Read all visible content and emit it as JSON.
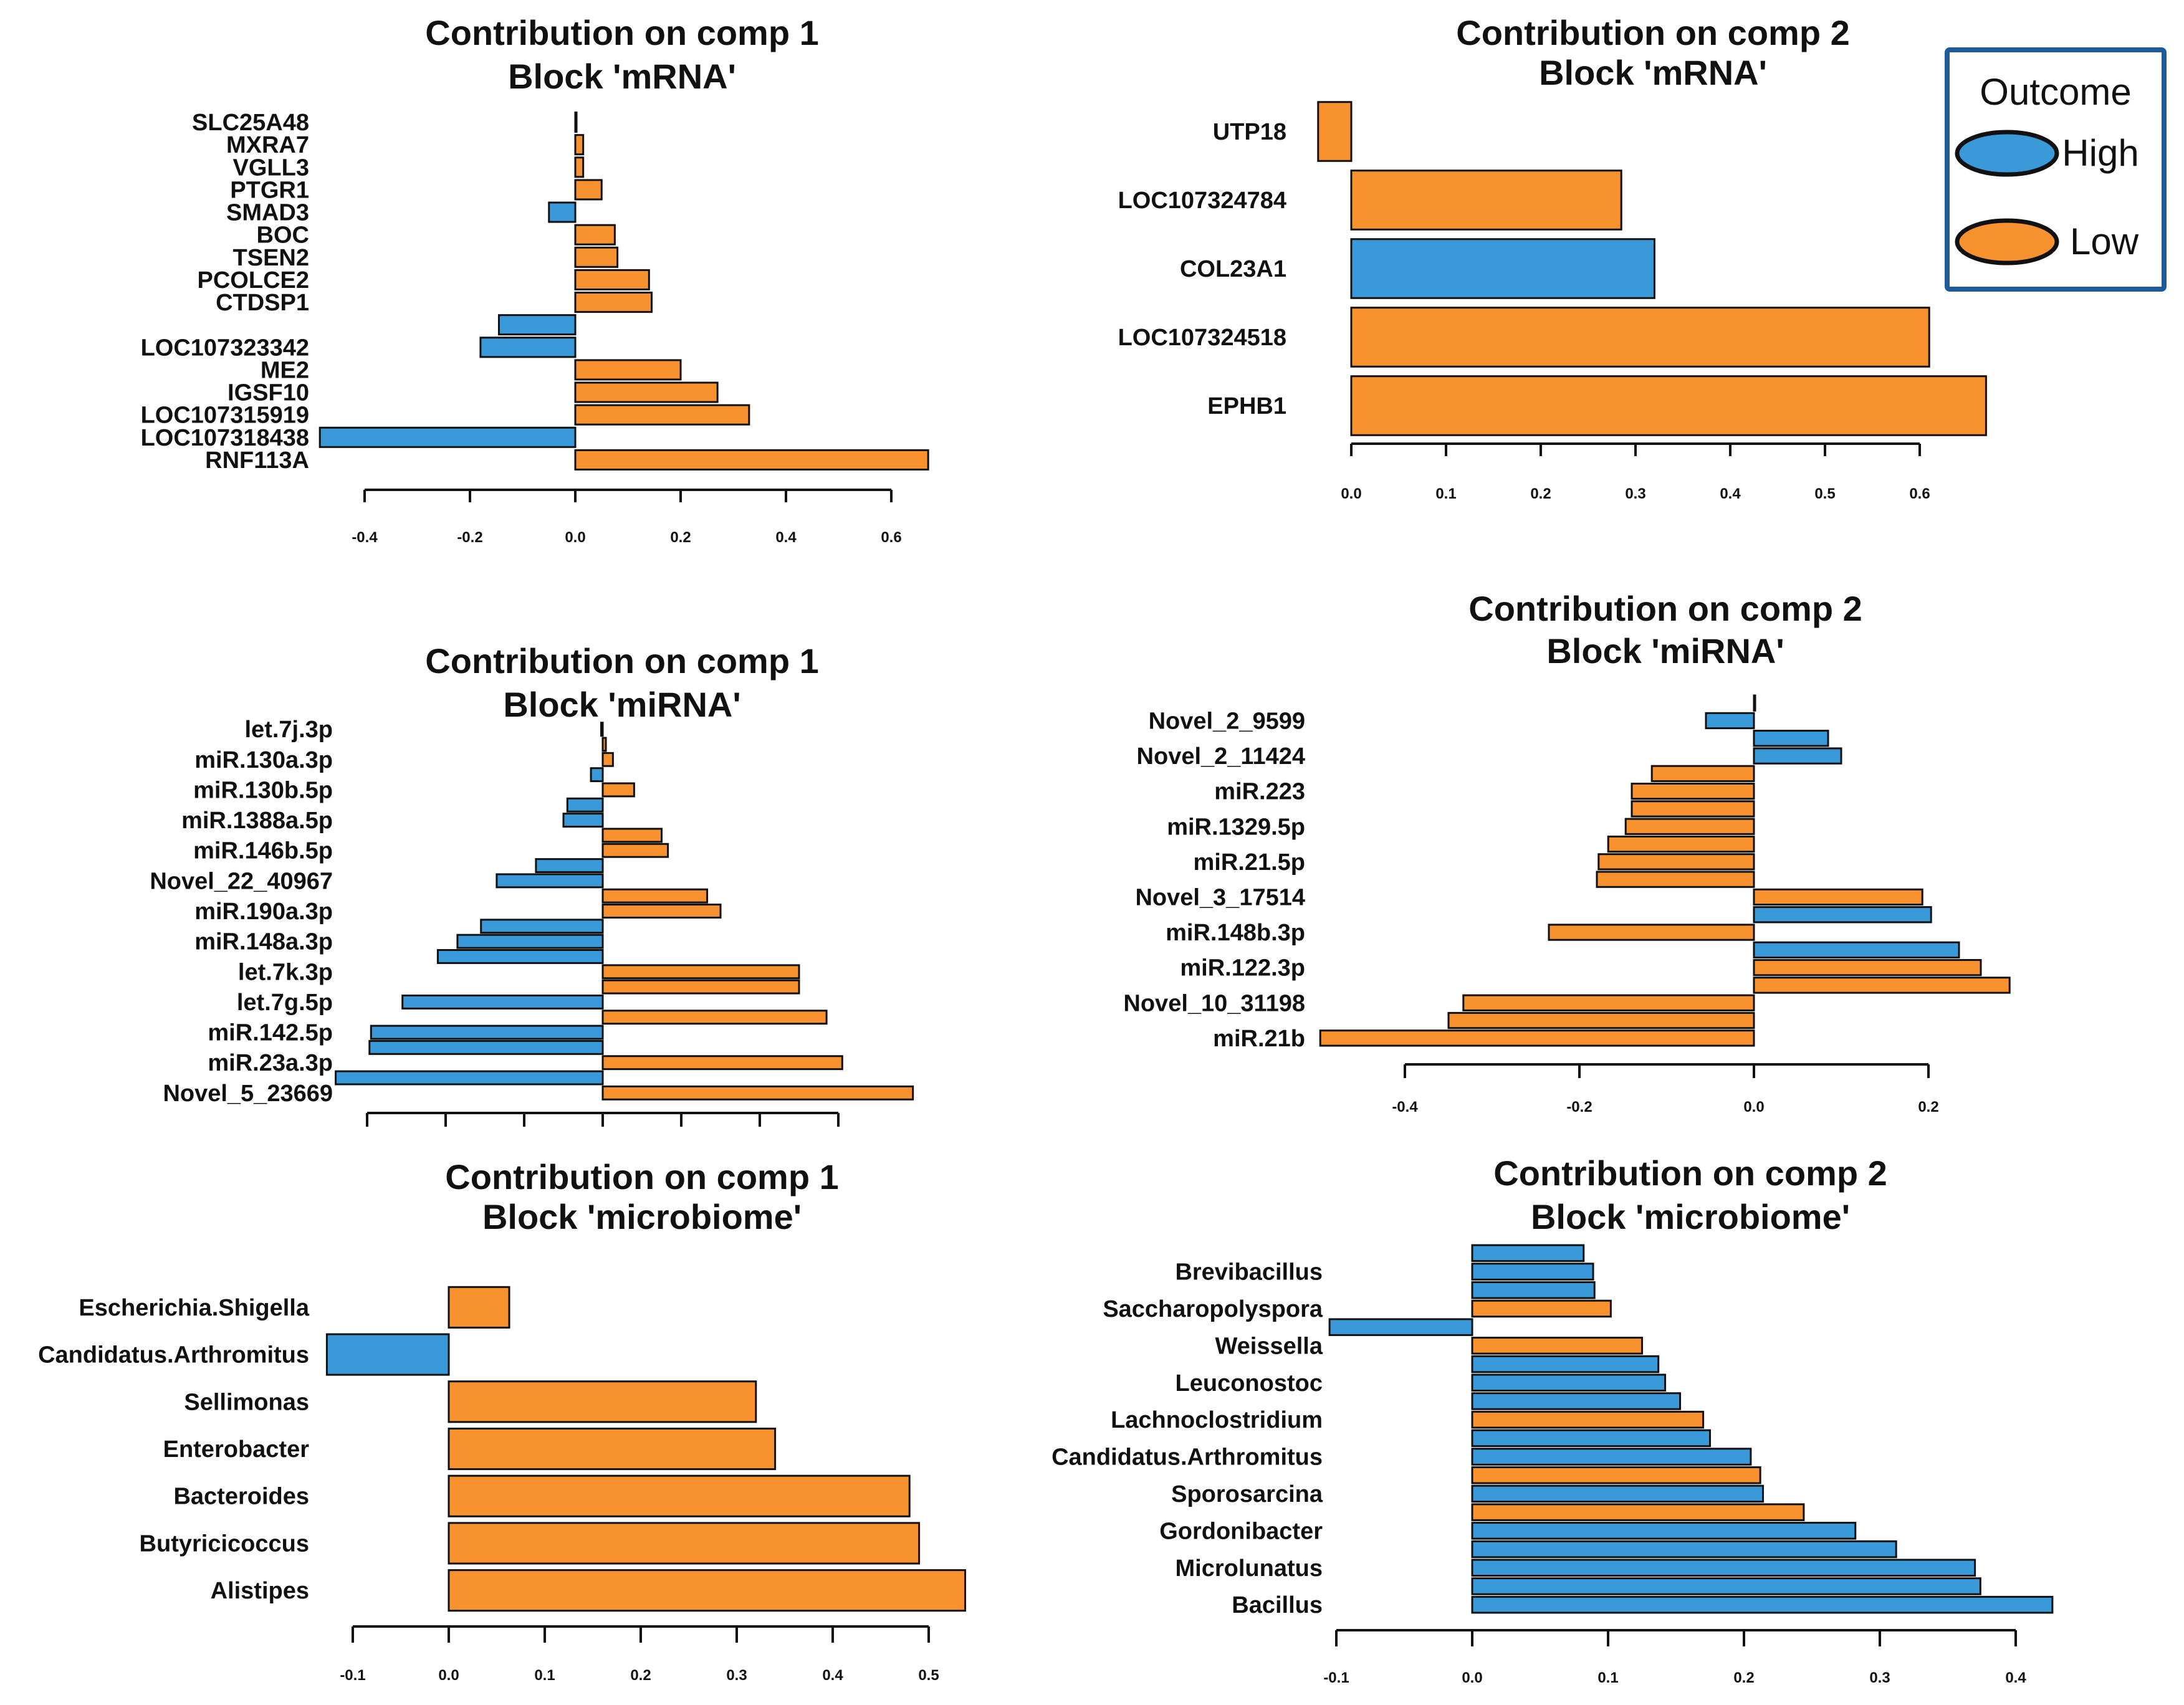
{
  "legend": {
    "title": "Outcome",
    "entries": [
      {
        "label": "High",
        "color": "#3a9ad9"
      },
      {
        "label": "Low",
        "color": "#f7922f"
      }
    ]
  },
  "colors": {
    "High": "#3a9ad9",
    "Low": "#f7922f",
    "border": "#111111",
    "legend_border": "#1f5b96"
  },
  "chart_data": [
    {
      "id": "mrna-comp1",
      "type": "bar",
      "title": "Contribution on comp 1",
      "subtitle": "Block 'mRNA'",
      "xlim": [
        -0.4,
        0.6
      ],
      "ticks": [
        -0.4,
        -0.2,
        0.0,
        0.2,
        0.4,
        0.6
      ],
      "tick_labels": [
        "-0.4",
        "-0.2",
        "0.0",
        "0.2",
        "0.4",
        "0.6"
      ],
      "bars": [
        {
          "label": "SLC25A48",
          "value": 0.002,
          "group": "Low"
        },
        {
          "label": "MXRA7",
          "value": 0.015,
          "group": "Low"
        },
        {
          "label": "VGLL3",
          "value": 0.015,
          "group": "Low"
        },
        {
          "label": "PTGR1",
          "value": 0.05,
          "group": "Low"
        },
        {
          "label": "SMAD3",
          "value": -0.05,
          "group": "High"
        },
        {
          "label": "BOC",
          "value": 0.075,
          "group": "Low"
        },
        {
          "label": "TSEN2",
          "value": 0.08,
          "group": "Low"
        },
        {
          "label": "PCOLCE2",
          "value": 0.14,
          "group": "Low"
        },
        {
          "label": "CTDSP1",
          "value": 0.145,
          "group": "Low"
        },
        {
          "label": "",
          "value": -0.145,
          "group": "High"
        },
        {
          "label": "LOC107323342",
          "value": -0.18,
          "group": "High"
        },
        {
          "label": "ME2",
          "value": 0.2,
          "group": "Low"
        },
        {
          "label": "IGSF10",
          "value": 0.27,
          "group": "Low"
        },
        {
          "label": "LOC107315919",
          "value": 0.33,
          "group": "Low"
        },
        {
          "label": "LOC107318438",
          "value": -0.485,
          "group": "High"
        },
        {
          "label": "RNF113A",
          "value": 0.67,
          "group": "Low"
        }
      ]
    },
    {
      "id": "mrna-comp2",
      "type": "bar",
      "title": "Contribution on comp 2",
      "subtitle": "Block 'mRNA'",
      "xlim": [
        0.0,
        0.6
      ],
      "ticks": [
        0.0,
        0.1,
        0.2,
        0.3,
        0.4,
        0.5,
        0.6
      ],
      "tick_labels": [
        "0.0",
        "0.1",
        "0.2",
        "0.3",
        "0.4",
        "0.5",
        "0.6"
      ],
      "bars": [
        {
          "label": "UTP18",
          "value": -0.035,
          "group": "Low"
        },
        {
          "label": "LOC107324784",
          "value": 0.285,
          "group": "Low"
        },
        {
          "label": "COL23A1",
          "value": 0.32,
          "group": "High"
        },
        {
          "label": "LOC107324518",
          "value": 0.61,
          "group": "Low"
        },
        {
          "label": "EPHB1",
          "value": 0.67,
          "group": "Low"
        }
      ]
    },
    {
      "id": "mirna-comp1",
      "type": "bar",
      "title": "Contribution on comp 1",
      "subtitle": "Block 'miRNA'",
      "xlim": [
        -0.3,
        0.3
      ],
      "ticks": [
        -0.3,
        -0.2,
        -0.1,
        0.0,
        0.1,
        0.2,
        0.3
      ],
      "tick_labels": [
        "",
        "",
        "",
        "",
        "",
        "",
        ""
      ],
      "bars": [
        {
          "label": "let.7j.3p",
          "value": -0.002,
          "group": "High"
        },
        {
          "label": "",
          "value": 0.004,
          "group": "Low"
        },
        {
          "label": "miR.130a.3p",
          "value": 0.013,
          "group": "Low"
        },
        {
          "label": "",
          "value": -0.015,
          "group": "High"
        },
        {
          "label": "miR.130b.5p",
          "value": 0.04,
          "group": "Low"
        },
        {
          "label": "",
          "value": -0.045,
          "group": "High"
        },
        {
          "label": "miR.1388a.5p",
          "value": -0.05,
          "group": "High"
        },
        {
          "label": "",
          "value": 0.075,
          "group": "Low"
        },
        {
          "label": "miR.146b.5p",
          "value": 0.083,
          "group": "Low"
        },
        {
          "label": "",
          "value": -0.085,
          "group": "High"
        },
        {
          "label": "Novel_22_40967",
          "value": -0.135,
          "group": "High"
        },
        {
          "label": "",
          "value": 0.133,
          "group": "Low"
        },
        {
          "label": "miR.190a.3p",
          "value": 0.15,
          "group": "Low"
        },
        {
          "label": "",
          "value": -0.155,
          "group": "High"
        },
        {
          "label": "miR.148a.3p",
          "value": -0.185,
          "group": "High"
        },
        {
          "label": "",
          "value": -0.21,
          "group": "High"
        },
        {
          "label": "let.7k.3p",
          "value": 0.25,
          "group": "Low"
        },
        {
          "label": "",
          "value": 0.25,
          "group": "Low"
        },
        {
          "label": "let.7g.5p",
          "value": -0.255,
          "group": "High"
        },
        {
          "label": "",
          "value": 0.285,
          "group": "Low"
        },
        {
          "label": "miR.142.5p",
          "value": -0.295,
          "group": "High"
        },
        {
          "label": "",
          "value": -0.297,
          "group": "High"
        },
        {
          "label": "miR.23a.3p",
          "value": 0.305,
          "group": "Low"
        },
        {
          "label": "",
          "value": -0.34,
          "group": "High"
        },
        {
          "label": "Novel_5_23669",
          "value": 0.395,
          "group": "Low"
        }
      ]
    },
    {
      "id": "mirna-comp2",
      "type": "bar",
      "title": "Contribution on comp 2",
      "subtitle": "Block 'miRNA'",
      "xlim": [
        -0.4,
        0.2
      ],
      "ticks": [
        -0.4,
        -0.2,
        0.0,
        0.2
      ],
      "tick_labels": [
        "-0.4",
        "-0.2",
        "0.0",
        "0.2"
      ],
      "bars": [
        {
          "label": "",
          "value": 0.0,
          "group": "High"
        },
        {
          "label": "Novel_2_9599",
          "value": -0.055,
          "group": "High"
        },
        {
          "label": "",
          "value": 0.085,
          "group": "High"
        },
        {
          "label": "Novel_2_11424",
          "value": 0.1,
          "group": "High"
        },
        {
          "label": "",
          "value": -0.117,
          "group": "Low"
        },
        {
          "label": "miR.223",
          "value": -0.14,
          "group": "Low"
        },
        {
          "label": "",
          "value": -0.14,
          "group": "Low"
        },
        {
          "label": "miR.1329.5p",
          "value": -0.147,
          "group": "Low"
        },
        {
          "label": "",
          "value": -0.167,
          "group": "Low"
        },
        {
          "label": "miR.21.5p",
          "value": -0.178,
          "group": "Low"
        },
        {
          "label": "",
          "value": -0.18,
          "group": "Low"
        },
        {
          "label": "Novel_3_17514",
          "value": 0.193,
          "group": "Low"
        },
        {
          "label": "",
          "value": 0.203,
          "group": "High"
        },
        {
          "label": "miR.148b.3p",
          "value": -0.235,
          "group": "Low"
        },
        {
          "label": "",
          "value": 0.235,
          "group": "High"
        },
        {
          "label": "miR.122.3p",
          "value": 0.26,
          "group": "Low"
        },
        {
          "label": "",
          "value": 0.293,
          "group": "Low"
        },
        {
          "label": "Novel_10_31198",
          "value": -0.333,
          "group": "Low"
        },
        {
          "label": "",
          "value": -0.35,
          "group": "Low"
        },
        {
          "label": "miR.21b",
          "value": -0.497,
          "group": "Low"
        }
      ]
    },
    {
      "id": "microbiome-comp1",
      "type": "bar",
      "title": "Contribution on comp 1",
      "subtitle": "Block 'microbiome'",
      "xlim": [
        -0.1,
        0.5
      ],
      "ticks": [
        -0.1,
        0.0,
        0.1,
        0.2,
        0.3,
        0.4,
        0.5
      ],
      "tick_labels": [
        "-0.1",
        "0.0",
        "0.1",
        "0.2",
        "0.3",
        "0.4",
        "0.5"
      ],
      "bars": [
        {
          "label": "Escherichia.Shigella",
          "value": 0.063,
          "group": "Low"
        },
        {
          "label": "Candidatus.Arthromitus",
          "value": -0.127,
          "group": "High"
        },
        {
          "label": "Sellimonas",
          "value": 0.32,
          "group": "Low"
        },
        {
          "label": "Enterobacter",
          "value": 0.34,
          "group": "Low"
        },
        {
          "label": "Bacteroides",
          "value": 0.48,
          "group": "Low"
        },
        {
          "label": "Butyricicoccus",
          "value": 0.49,
          "group": "Low"
        },
        {
          "label": "Alistipes",
          "value": 0.538,
          "group": "Low"
        }
      ]
    },
    {
      "id": "microbiome-comp2",
      "type": "bar",
      "title": "Contribution on comp 2",
      "subtitle": "Block 'microbiome'",
      "xlim": [
        -0.1,
        0.4
      ],
      "ticks": [
        -0.1,
        0.0,
        0.1,
        0.2,
        0.3,
        0.4
      ],
      "tick_labels": [
        "-0.1",
        "0.0",
        "0.1",
        "0.2",
        "0.3",
        "0.4"
      ],
      "bars": [
        {
          "label": "",
          "value": 0.082,
          "group": "High"
        },
        {
          "label": "Brevibacillus",
          "value": 0.089,
          "group": "High"
        },
        {
          "label": "",
          "value": 0.09,
          "group": "High"
        },
        {
          "label": "Saccharopolyspora",
          "value": 0.102,
          "group": "Low"
        },
        {
          "label": "",
          "value": -0.105,
          "group": "High"
        },
        {
          "label": "Weissella",
          "value": 0.125,
          "group": "Low"
        },
        {
          "label": "",
          "value": 0.137,
          "group": "High"
        },
        {
          "label": "Leuconostoc",
          "value": 0.142,
          "group": "High"
        },
        {
          "label": "",
          "value": 0.153,
          "group": "High"
        },
        {
          "label": "Lachnoclostridium",
          "value": 0.17,
          "group": "Low"
        },
        {
          "label": "",
          "value": 0.175,
          "group": "High"
        },
        {
          "label": "Candidatus.Arthromitus",
          "value": 0.205,
          "group": "High"
        },
        {
          "label": "",
          "value": 0.212,
          "group": "Low"
        },
        {
          "label": "Sporosarcina",
          "value": 0.214,
          "group": "High"
        },
        {
          "label": "",
          "value": 0.244,
          "group": "Low"
        },
        {
          "label": "Gordonibacter",
          "value": 0.282,
          "group": "High"
        },
        {
          "label": "",
          "value": 0.312,
          "group": "High"
        },
        {
          "label": "Microlunatus",
          "value": 0.37,
          "group": "High"
        },
        {
          "label": "",
          "value": 0.374,
          "group": "High"
        },
        {
          "label": "Bacillus",
          "value": 0.427,
          "group": "High"
        }
      ]
    }
  ]
}
